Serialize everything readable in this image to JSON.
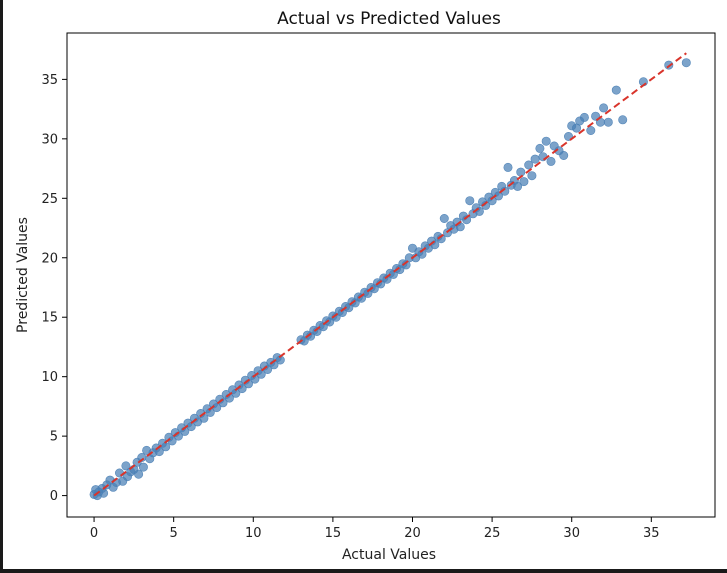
{
  "chart_data": {
    "type": "scatter",
    "title": "Actual vs Predicted Values",
    "xlabel": "Actual Values",
    "ylabel": "Predicted Values",
    "xlim": [
      -1.7,
      39.0
    ],
    "ylim": [
      -1.8,
      38.9
    ],
    "xticks": [
      0,
      5,
      10,
      15,
      20,
      25,
      30,
      35
    ],
    "yticks": [
      0,
      5,
      10,
      15,
      20,
      25,
      30,
      35
    ],
    "grid": false,
    "legend": "none",
    "series": [
      {
        "kind": "points",
        "color": "#4a7fb5",
        "points": [
          [
            0.0,
            0.1
          ],
          [
            0.1,
            0.5
          ],
          [
            0.2,
            0.0
          ],
          [
            0.3,
            0.3
          ],
          [
            0.5,
            0.6
          ],
          [
            0.6,
            0.2
          ],
          [
            0.8,
            0.9
          ],
          [
            1.0,
            1.3
          ],
          [
            1.2,
            0.7
          ],
          [
            1.4,
            1.1
          ],
          [
            1.6,
            1.9
          ],
          [
            1.8,
            1.2
          ],
          [
            2.0,
            2.5
          ],
          [
            2.1,
            1.6
          ],
          [
            2.3,
            2.0
          ],
          [
            2.5,
            2.2
          ],
          [
            2.7,
            2.8
          ],
          [
            2.8,
            1.8
          ],
          [
            3.0,
            3.2
          ],
          [
            3.1,
            2.4
          ],
          [
            3.3,
            3.8
          ],
          [
            3.5,
            3.1
          ],
          [
            3.7,
            3.6
          ],
          [
            3.9,
            4.0
          ],
          [
            4.1,
            3.7
          ],
          [
            4.3,
            4.4
          ],
          [
            4.5,
            4.1
          ],
          [
            4.7,
            4.9
          ],
          [
            4.9,
            4.6
          ],
          [
            5.1,
            5.3
          ],
          [
            5.3,
            5.0
          ],
          [
            5.5,
            5.7
          ],
          [
            5.7,
            5.4
          ],
          [
            5.9,
            6.1
          ],
          [
            6.1,
            5.8
          ],
          [
            6.3,
            6.5
          ],
          [
            6.5,
            6.2
          ],
          [
            6.7,
            6.9
          ],
          [
            6.9,
            6.5
          ],
          [
            7.1,
            7.3
          ],
          [
            7.3,
            7.0
          ],
          [
            7.5,
            7.7
          ],
          [
            7.7,
            7.4
          ],
          [
            7.9,
            8.1
          ],
          [
            8.1,
            7.8
          ],
          [
            8.3,
            8.5
          ],
          [
            8.5,
            8.2
          ],
          [
            8.7,
            8.9
          ],
          [
            8.9,
            8.6
          ],
          [
            9.1,
            9.3
          ],
          [
            9.3,
            9.0
          ],
          [
            9.5,
            9.7
          ],
          [
            9.7,
            9.4
          ],
          [
            9.9,
            10.1
          ],
          [
            10.1,
            9.8
          ],
          [
            10.3,
            10.5
          ],
          [
            10.5,
            10.2
          ],
          [
            10.7,
            10.9
          ],
          [
            10.9,
            10.6
          ],
          [
            11.1,
            11.2
          ],
          [
            11.3,
            11.0
          ],
          [
            11.5,
            11.6
          ],
          [
            11.7,
            11.4
          ],
          [
            13.0,
            13.1
          ],
          [
            13.2,
            13.0
          ],
          [
            13.4,
            13.5
          ],
          [
            13.6,
            13.4
          ],
          [
            13.8,
            13.9
          ],
          [
            14.0,
            13.8
          ],
          [
            14.2,
            14.3
          ],
          [
            14.4,
            14.2
          ],
          [
            14.6,
            14.7
          ],
          [
            14.8,
            14.6
          ],
          [
            15.0,
            15.1
          ],
          [
            15.2,
            15.0
          ],
          [
            15.4,
            15.5
          ],
          [
            15.6,
            15.4
          ],
          [
            15.8,
            15.9
          ],
          [
            16.0,
            15.8
          ],
          [
            16.2,
            16.3
          ],
          [
            16.4,
            16.2
          ],
          [
            16.6,
            16.7
          ],
          [
            16.8,
            16.6
          ],
          [
            17.0,
            17.1
          ],
          [
            17.2,
            17.0
          ],
          [
            17.4,
            17.5
          ],
          [
            17.6,
            17.4
          ],
          [
            17.8,
            17.9
          ],
          [
            18.0,
            17.8
          ],
          [
            18.2,
            18.3
          ],
          [
            18.4,
            18.2
          ],
          [
            18.6,
            18.7
          ],
          [
            18.8,
            18.6
          ],
          [
            19.0,
            19.1
          ],
          [
            19.2,
            19.0
          ],
          [
            19.4,
            19.5
          ],
          [
            19.6,
            19.4
          ],
          [
            19.8,
            20.0
          ],
          [
            20.0,
            20.8
          ],
          [
            20.2,
            20.0
          ],
          [
            20.4,
            20.5
          ],
          [
            20.6,
            20.3
          ],
          [
            20.8,
            21.0
          ],
          [
            21.0,
            20.8
          ],
          [
            21.2,
            21.4
          ],
          [
            21.4,
            21.1
          ],
          [
            21.6,
            21.8
          ],
          [
            21.8,
            21.6
          ],
          [
            22.0,
            23.3
          ],
          [
            22.2,
            22.1
          ],
          [
            22.4,
            22.7
          ],
          [
            22.6,
            22.4
          ],
          [
            22.8,
            23.0
          ],
          [
            23.0,
            22.6
          ],
          [
            23.2,
            23.5
          ],
          [
            23.4,
            23.2
          ],
          [
            23.6,
            24.8
          ],
          [
            23.8,
            23.7
          ],
          [
            24.0,
            24.2
          ],
          [
            24.2,
            23.9
          ],
          [
            24.4,
            24.7
          ],
          [
            24.6,
            24.4
          ],
          [
            24.8,
            25.1
          ],
          [
            25.0,
            24.8
          ],
          [
            25.2,
            25.5
          ],
          [
            25.4,
            25.2
          ],
          [
            25.6,
            26.0
          ],
          [
            25.8,
            25.6
          ],
          [
            26.0,
            27.6
          ],
          [
            26.2,
            26.1
          ],
          [
            26.4,
            26.5
          ],
          [
            26.6,
            26.0
          ],
          [
            26.8,
            27.2
          ],
          [
            27.0,
            26.4
          ],
          [
            27.3,
            27.8
          ],
          [
            27.5,
            26.9
          ],
          [
            27.7,
            28.3
          ],
          [
            28.0,
            29.2
          ],
          [
            28.2,
            28.5
          ],
          [
            28.4,
            29.8
          ],
          [
            28.7,
            28.1
          ],
          [
            28.9,
            29.4
          ],
          [
            29.2,
            29.0
          ],
          [
            29.5,
            28.6
          ],
          [
            29.8,
            30.2
          ],
          [
            30.0,
            31.1
          ],
          [
            30.3,
            30.9
          ],
          [
            30.5,
            31.5
          ],
          [
            30.8,
            31.8
          ],
          [
            31.2,
            30.7
          ],
          [
            31.5,
            31.9
          ],
          [
            31.8,
            31.4
          ],
          [
            32.0,
            32.6
          ],
          [
            32.3,
            31.4
          ],
          [
            32.8,
            34.1
          ],
          [
            33.2,
            31.6
          ],
          [
            34.5,
            34.8
          ],
          [
            36.1,
            36.2
          ],
          [
            37.2,
            36.4
          ]
        ]
      },
      {
        "kind": "line",
        "name": "",
        "color": "#d9342b",
        "x": [
          0,
          37.2
        ],
        "y": [
          0,
          37.2
        ]
      }
    ]
  }
}
